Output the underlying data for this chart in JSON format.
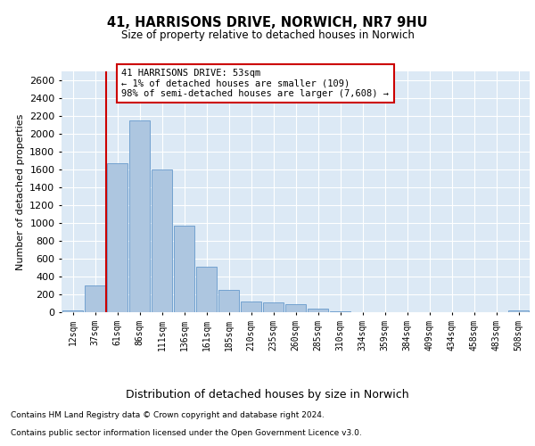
{
  "title1": "41, HARRISONS DRIVE, NORWICH, NR7 9HU",
  "title2": "Size of property relative to detached houses in Norwich",
  "xlabel": "Distribution of detached houses by size in Norwich",
  "ylabel": "Number of detached properties",
  "categories": [
    "12sqm",
    "37sqm",
    "61sqm",
    "86sqm",
    "111sqm",
    "136sqm",
    "161sqm",
    "185sqm",
    "210sqm",
    "235sqm",
    "260sqm",
    "285sqm",
    "310sqm",
    "334sqm",
    "359sqm",
    "384sqm",
    "409sqm",
    "434sqm",
    "458sqm",
    "483sqm",
    "508sqm"
  ],
  "values": [
    20,
    300,
    1670,
    2150,
    1600,
    970,
    510,
    250,
    120,
    110,
    95,
    40,
    10,
    5,
    5,
    5,
    5,
    5,
    5,
    5,
    20
  ],
  "bar_color": "#adc6e0",
  "bar_edge_color": "#6699cc",
  "vline_x": 1.5,
  "vline_color": "#cc0000",
  "annotation_text": "41 HARRISONS DRIVE: 53sqm\n← 1% of detached houses are smaller (109)\n98% of semi-detached houses are larger (7,608) →",
  "annotation_box_color": "#ffffff",
  "annotation_box_edge": "#cc0000",
  "ylim": [
    0,
    2700
  ],
  "yticks": [
    0,
    200,
    400,
    600,
    800,
    1000,
    1200,
    1400,
    1600,
    1800,
    2000,
    2200,
    2400,
    2600
  ],
  "footnote1": "Contains HM Land Registry data © Crown copyright and database right 2024.",
  "footnote2": "Contains public sector information licensed under the Open Government Licence v3.0.",
  "bg_color": "#dce9f5",
  "fig_bg_color": "#ffffff"
}
